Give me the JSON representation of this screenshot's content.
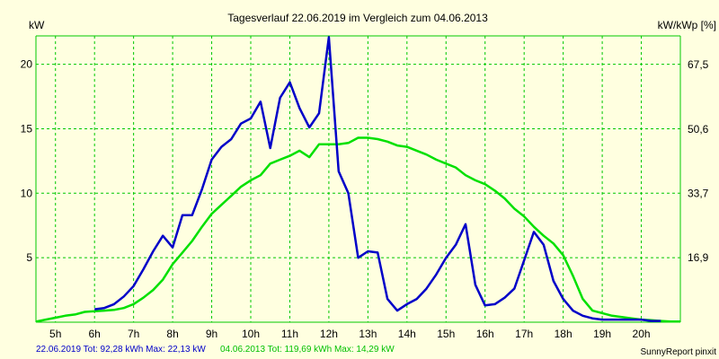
{
  "chart_data": {
    "type": "line",
    "title": "Tagesverlauf 22.06.2019 im Vergleich zum 04.06.2013",
    "ylabel_left": "kW",
    "ylabel_right": "kW/kWp [%]",
    "xlim": [
      4.5,
      21.0
    ],
    "ylim_left": [
      0,
      22.2
    ],
    "ylim_right": [
      0,
      75.0
    ],
    "x_ticks": [
      5,
      6,
      7,
      8,
      9,
      10,
      11,
      12,
      13,
      14,
      15,
      16,
      17,
      18,
      19,
      20
    ],
    "x_tick_labels": [
      "5h",
      "6h",
      "7h",
      "8h",
      "9h",
      "10h",
      "11h",
      "12h",
      "13h",
      "14h",
      "15h",
      "16h",
      "17h",
      "18h",
      "19h",
      "20h"
    ],
    "y_ticks_left": [
      5,
      10,
      15,
      20
    ],
    "y_ticks_left_labels": [
      "5",
      "10",
      "15",
      "20"
    ],
    "y_ticks_right": [
      16.9,
      33.7,
      50.6,
      67.5
    ],
    "y_ticks_right_labels": [
      "16,9",
      "33,7",
      "50,6",
      "67,5"
    ],
    "grid": true,
    "series": [
      {
        "name": "22.06.2019",
        "color": "#0000c8",
        "x": [
          6.0,
          6.25,
          6.5,
          6.75,
          7.0,
          7.25,
          7.5,
          7.75,
          8.0,
          8.25,
          8.5,
          8.75,
          9.0,
          9.25,
          9.5,
          9.75,
          10.0,
          10.25,
          10.5,
          10.75,
          11.0,
          11.25,
          11.5,
          11.75,
          12.0,
          12.25,
          12.5,
          12.75,
          13.0,
          13.25,
          13.5,
          13.75,
          14.0,
          14.25,
          14.5,
          14.75,
          15.0,
          15.25,
          15.5,
          15.75,
          16.0,
          16.25,
          16.5,
          16.75,
          17.0,
          17.25,
          17.5,
          17.75,
          18.0,
          18.25,
          18.5,
          18.75,
          19.0,
          19.25,
          19.5,
          19.75,
          20.0,
          20.25,
          20.5
        ],
        "y": [
          1.0,
          1.1,
          1.4,
          2.0,
          2.8,
          4.1,
          5.5,
          6.7,
          5.8,
          8.3,
          8.3,
          10.3,
          12.6,
          13.6,
          14.2,
          15.4,
          15.8,
          17.1,
          13.5,
          17.4,
          18.6,
          16.6,
          15.1,
          16.2,
          22.1,
          11.7,
          10.0,
          5.0,
          5.5,
          5.4,
          1.8,
          0.9,
          1.4,
          1.8,
          2.6,
          3.7,
          5.0,
          6.0,
          7.6,
          2.9,
          1.3,
          1.4,
          1.9,
          2.6,
          4.8,
          7.0,
          6.0,
          3.2,
          1.8,
          0.9,
          0.5,
          0.3,
          0.2,
          0.2,
          0.2,
          0.2,
          0.2,
          0.1,
          0.1
        ]
      },
      {
        "name": "04.06.2013",
        "color": "#00e000",
        "x": [
          4.5,
          4.75,
          5.0,
          5.25,
          5.5,
          5.75,
          6.0,
          6.25,
          6.5,
          6.75,
          7.0,
          7.25,
          7.5,
          7.75,
          8.0,
          8.25,
          8.5,
          8.75,
          9.0,
          9.25,
          9.5,
          9.75,
          10.0,
          10.25,
          10.5,
          10.75,
          11.0,
          11.25,
          11.5,
          11.75,
          12.0,
          12.25,
          12.5,
          12.75,
          13.0,
          13.25,
          13.5,
          13.75,
          14.0,
          14.25,
          14.5,
          14.75,
          15.0,
          15.25,
          15.5,
          15.75,
          16.0,
          16.25,
          16.5,
          16.75,
          17.0,
          17.25,
          17.5,
          17.75,
          18.0,
          18.25,
          18.5,
          18.75,
          19.0,
          19.25,
          19.5,
          19.75,
          20.0,
          20.25,
          20.5,
          20.75,
          21.0
        ],
        "y": [
          0.05,
          0.2,
          0.35,
          0.5,
          0.6,
          0.8,
          0.85,
          0.9,
          0.95,
          1.1,
          1.4,
          1.9,
          2.5,
          3.3,
          4.5,
          5.4,
          6.3,
          7.4,
          8.4,
          9.1,
          9.8,
          10.5,
          11.0,
          11.4,
          12.3,
          12.6,
          12.9,
          13.3,
          12.8,
          13.8,
          13.8,
          13.8,
          13.9,
          14.3,
          14.3,
          14.2,
          14.0,
          13.7,
          13.6,
          13.3,
          13.0,
          12.6,
          12.3,
          12.0,
          11.4,
          11.0,
          10.7,
          10.2,
          9.6,
          8.8,
          8.2,
          7.4,
          6.7,
          6.1,
          5.2,
          3.6,
          1.8,
          0.9,
          0.7,
          0.5,
          0.4,
          0.3,
          0.2,
          0.15,
          0.1,
          0.05,
          0.05
        ]
      }
    ]
  },
  "footer": {
    "series1_label": "22.06.2019 Tot: 92,28 kWh Max: 22,13 kW",
    "series2_label": "04.06.2013 Tot: 119,69 kWh Max: 14,29 kW",
    "brand": "SunnyReport pinxit"
  },
  "colors": {
    "background": "#ffffe0",
    "grid": "#00c800",
    "series1": "#0000c8",
    "series2": "#00e000"
  }
}
